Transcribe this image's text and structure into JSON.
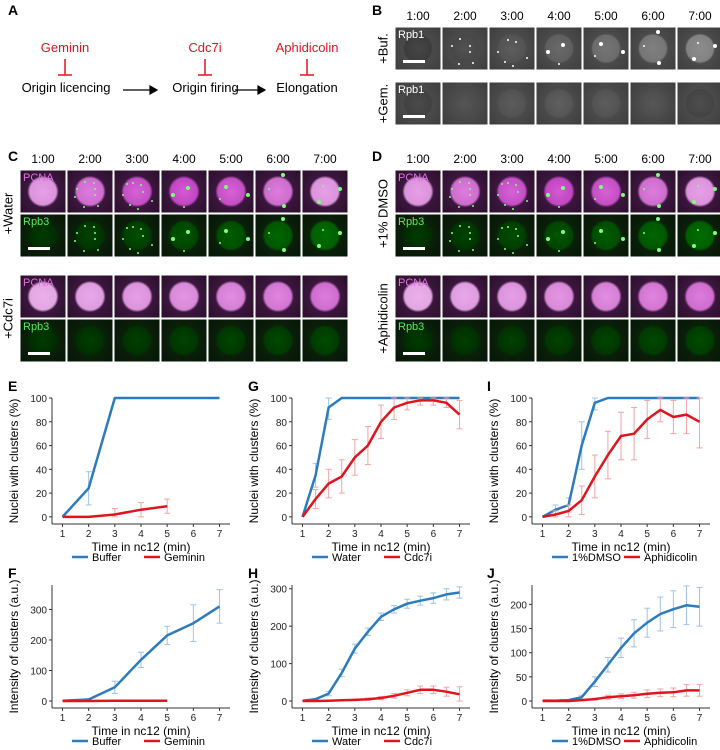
{
  "panels": {
    "A": "A",
    "B": "B",
    "C": "C",
    "D": "D",
    "E": "E",
    "F": "F",
    "G": "G",
    "H": "H",
    "I": "I",
    "J": "J"
  },
  "diagram": {
    "inhibitors": [
      "Geminin",
      "Cdc7i",
      "Aphidicolin"
    ],
    "steps": [
      "Origin licencing",
      "Origin firing",
      "Elongation"
    ]
  },
  "times": [
    "1:00",
    "2:00",
    "3:00",
    "4:00",
    "5:00",
    "6:00",
    "7:00"
  ],
  "panel_b": {
    "rows": [
      "+Buf.",
      "+Gem."
    ],
    "channel": "Rpb1"
  },
  "panel_c": {
    "rows": [
      "+Water",
      "+Cdc7i"
    ],
    "channels": [
      "PCNA",
      "Rpb3"
    ]
  },
  "panel_d": {
    "rows": [
      "+1% DMSO",
      "+Aphidicolin"
    ],
    "channels": [
      "PCNA",
      "Rpb3"
    ]
  },
  "colors": {
    "blue": "#2c7bbf",
    "red": "#e0141e",
    "lightblue": "#9dc3e6",
    "pink": "#f4a3a3",
    "magenta": "#cc33cc",
    "green": "#22bb22"
  },
  "chart_data": [
    {
      "id": "E",
      "type": "line",
      "xlabel": "Time in nc12 (min)",
      "ylabel": "Nuclei with clusters (%)",
      "ylim": [
        0,
        100
      ],
      "xticks": [
        1,
        2,
        3,
        4,
        5,
        6,
        7
      ],
      "yticks": [
        0,
        20,
        40,
        60,
        80,
        100
      ],
      "series": [
        {
          "name": "Buffer",
          "x": [
            1,
            2,
            3,
            4,
            5,
            6,
            7
          ],
          "values": [
            0,
            24,
            100,
            100,
            100,
            100,
            100
          ],
          "err": [
            0,
            14,
            0,
            0,
            0,
            0,
            0
          ]
        },
        {
          "name": "Geminin",
          "x": [
            1,
            2,
            3,
            4,
            5
          ],
          "values": [
            0,
            0,
            2,
            6,
            9
          ],
          "err": [
            0,
            0,
            5,
            6,
            6
          ]
        }
      ]
    },
    {
      "id": "G",
      "type": "line",
      "xlabel": "Time in nc12 (min)",
      "ylabel": "Nuclei with clusters (%)",
      "ylim": [
        0,
        100
      ],
      "xticks": [
        1,
        2,
        3,
        4,
        5,
        6,
        7
      ],
      "yticks": [
        0,
        20,
        40,
        60,
        80,
        100
      ],
      "series": [
        {
          "name": "Water",
          "x": [
            1,
            1.5,
            2,
            2.5,
            3,
            3.5,
            4,
            4.5,
            5,
            5.5,
            6,
            6.5,
            7
          ],
          "values": [
            0,
            35,
            92,
            100,
            100,
            100,
            100,
            100,
            100,
            100,
            100,
            100,
            100
          ],
          "err": [
            0,
            10,
            10,
            0,
            0,
            0,
            0,
            0,
            0,
            0,
            0,
            0,
            0
          ]
        },
        {
          "name": "Cdc7i",
          "x": [
            1,
            1.5,
            2,
            2.5,
            3,
            3.5,
            4,
            4.5,
            5,
            5.5,
            6,
            6.5,
            7
          ],
          "values": [
            0,
            15,
            28,
            34,
            50,
            60,
            80,
            92,
            96,
            98,
            98,
            96,
            86
          ],
          "err": [
            0,
            8,
            12,
            14,
            15,
            16,
            14,
            10,
            6,
            4,
            4,
            4,
            12
          ]
        }
      ]
    },
    {
      "id": "I",
      "type": "line",
      "xlabel": "Time in nc12 (min)",
      "ylabel": "Nuclei with clusters (%)",
      "ylim": [
        0,
        100
      ],
      "xticks": [
        1,
        2,
        3,
        4,
        5,
        6,
        7
      ],
      "yticks": [
        0,
        20,
        40,
        60,
        80,
        100
      ],
      "series": [
        {
          "name": "1%DMSO",
          "x": [
            1,
            1.5,
            2,
            2.5,
            3,
            3.5,
            4,
            4.5,
            5,
            5.5,
            6,
            6.5,
            7
          ],
          "values": [
            0,
            6,
            10,
            60,
            96,
            100,
            100,
            100,
            100,
            100,
            100,
            100,
            100
          ],
          "err": [
            0,
            4,
            6,
            20,
            6,
            0,
            0,
            0,
            0,
            0,
            0,
            0,
            0
          ]
        },
        {
          "name": "Aphidicolin",
          "x": [
            1,
            1.5,
            2,
            2.5,
            3,
            3.5,
            4,
            4.5,
            5,
            5.5,
            6,
            6.5,
            7
          ],
          "values": [
            0,
            2,
            5,
            14,
            34,
            52,
            68,
            70,
            82,
            90,
            84,
            86,
            80
          ],
          "err": [
            0,
            3,
            5,
            12,
            18,
            20,
            20,
            22,
            16,
            10,
            14,
            16,
            22
          ]
        }
      ]
    },
    {
      "id": "F",
      "type": "line",
      "xlabel": "Time in nc12 (min)",
      "ylabel": "Intensity of clusters (a.u.)",
      "ylim": [
        0,
        380
      ],
      "xticks": [
        1,
        2,
        3,
        4,
        5,
        6,
        7
      ],
      "yticks": [
        0,
        100,
        200,
        300
      ],
      "series": [
        {
          "name": "Buffer",
          "x": [
            1,
            2,
            3,
            4,
            5,
            6,
            7
          ],
          "values": [
            1,
            5,
            45,
            135,
            215,
            255,
            310
          ],
          "err": [
            0,
            3,
            20,
            25,
            30,
            60,
            55
          ]
        },
        {
          "name": "Geminin",
          "x": [
            1,
            2,
            3,
            4,
            5
          ],
          "values": [
            0,
            0,
            1,
            1,
            1
          ],
          "err": [
            0,
            0,
            0,
            0,
            0
          ]
        }
      ]
    },
    {
      "id": "H",
      "type": "line",
      "xlabel": "Time in nc12 (min)",
      "ylabel": "Intensity of clusters (a.u.)",
      "ylim": [
        0,
        310
      ],
      "xticks": [
        1,
        2,
        3,
        4,
        5,
        6,
        7
      ],
      "yticks": [
        0,
        100,
        200,
        300
      ],
      "series": [
        {
          "name": "Water",
          "x": [
            1,
            1.5,
            2,
            2.5,
            3,
            3.5,
            4,
            4.5,
            5,
            5.5,
            6,
            6.5,
            7
          ],
          "values": [
            1,
            5,
            20,
            75,
            140,
            185,
            225,
            245,
            260,
            268,
            275,
            285,
            290
          ],
          "err": [
            0,
            2,
            6,
            10,
            12,
            10,
            10,
            10,
            12,
            12,
            14,
            15,
            15
          ]
        },
        {
          "name": "Cdc7i",
          "x": [
            1,
            1.5,
            2,
            2.5,
            3,
            3.5,
            4,
            4.5,
            5,
            5.5,
            6,
            6.5,
            7
          ],
          "values": [
            0,
            0,
            1,
            2,
            3,
            5,
            8,
            14,
            22,
            30,
            30,
            25,
            18
          ],
          "err": [
            0,
            0,
            0,
            1,
            2,
            3,
            4,
            6,
            8,
            10,
            10,
            12,
            20
          ]
        }
      ]
    },
    {
      "id": "J",
      "type": "line",
      "xlabel": "Time in nc12 (min)",
      "ylabel": "Intensity of clusters (a.u.)",
      "ylim": [
        0,
        240
      ],
      "xticks": [
        1,
        2,
        3,
        4,
        5,
        6,
        7
      ],
      "yticks": [
        0,
        50,
        100,
        150,
        200
      ],
      "series": [
        {
          "name": "1%DMSO",
          "x": [
            1,
            1.5,
            2,
            2.5,
            3,
            3.5,
            4,
            4.5,
            5,
            5.5,
            6,
            6.5,
            7
          ],
          "values": [
            1,
            1,
            2,
            8,
            40,
            75,
            110,
            140,
            162,
            180,
            190,
            198,
            195
          ],
          "err": [
            0,
            0,
            1,
            4,
            10,
            15,
            20,
            28,
            30,
            35,
            38,
            40,
            40
          ]
        },
        {
          "name": "Aphidicolin",
          "x": [
            1,
            1.5,
            2,
            2.5,
            3,
            3.5,
            4,
            4.5,
            5,
            5.5,
            6,
            6.5,
            7
          ],
          "values": [
            0,
            0,
            0,
            2,
            4,
            8,
            10,
            12,
            15,
            17,
            18,
            22,
            22
          ],
          "err": [
            0,
            0,
            0,
            1,
            2,
            4,
            5,
            6,
            8,
            8,
            9,
            12,
            12
          ]
        }
      ]
    }
  ]
}
